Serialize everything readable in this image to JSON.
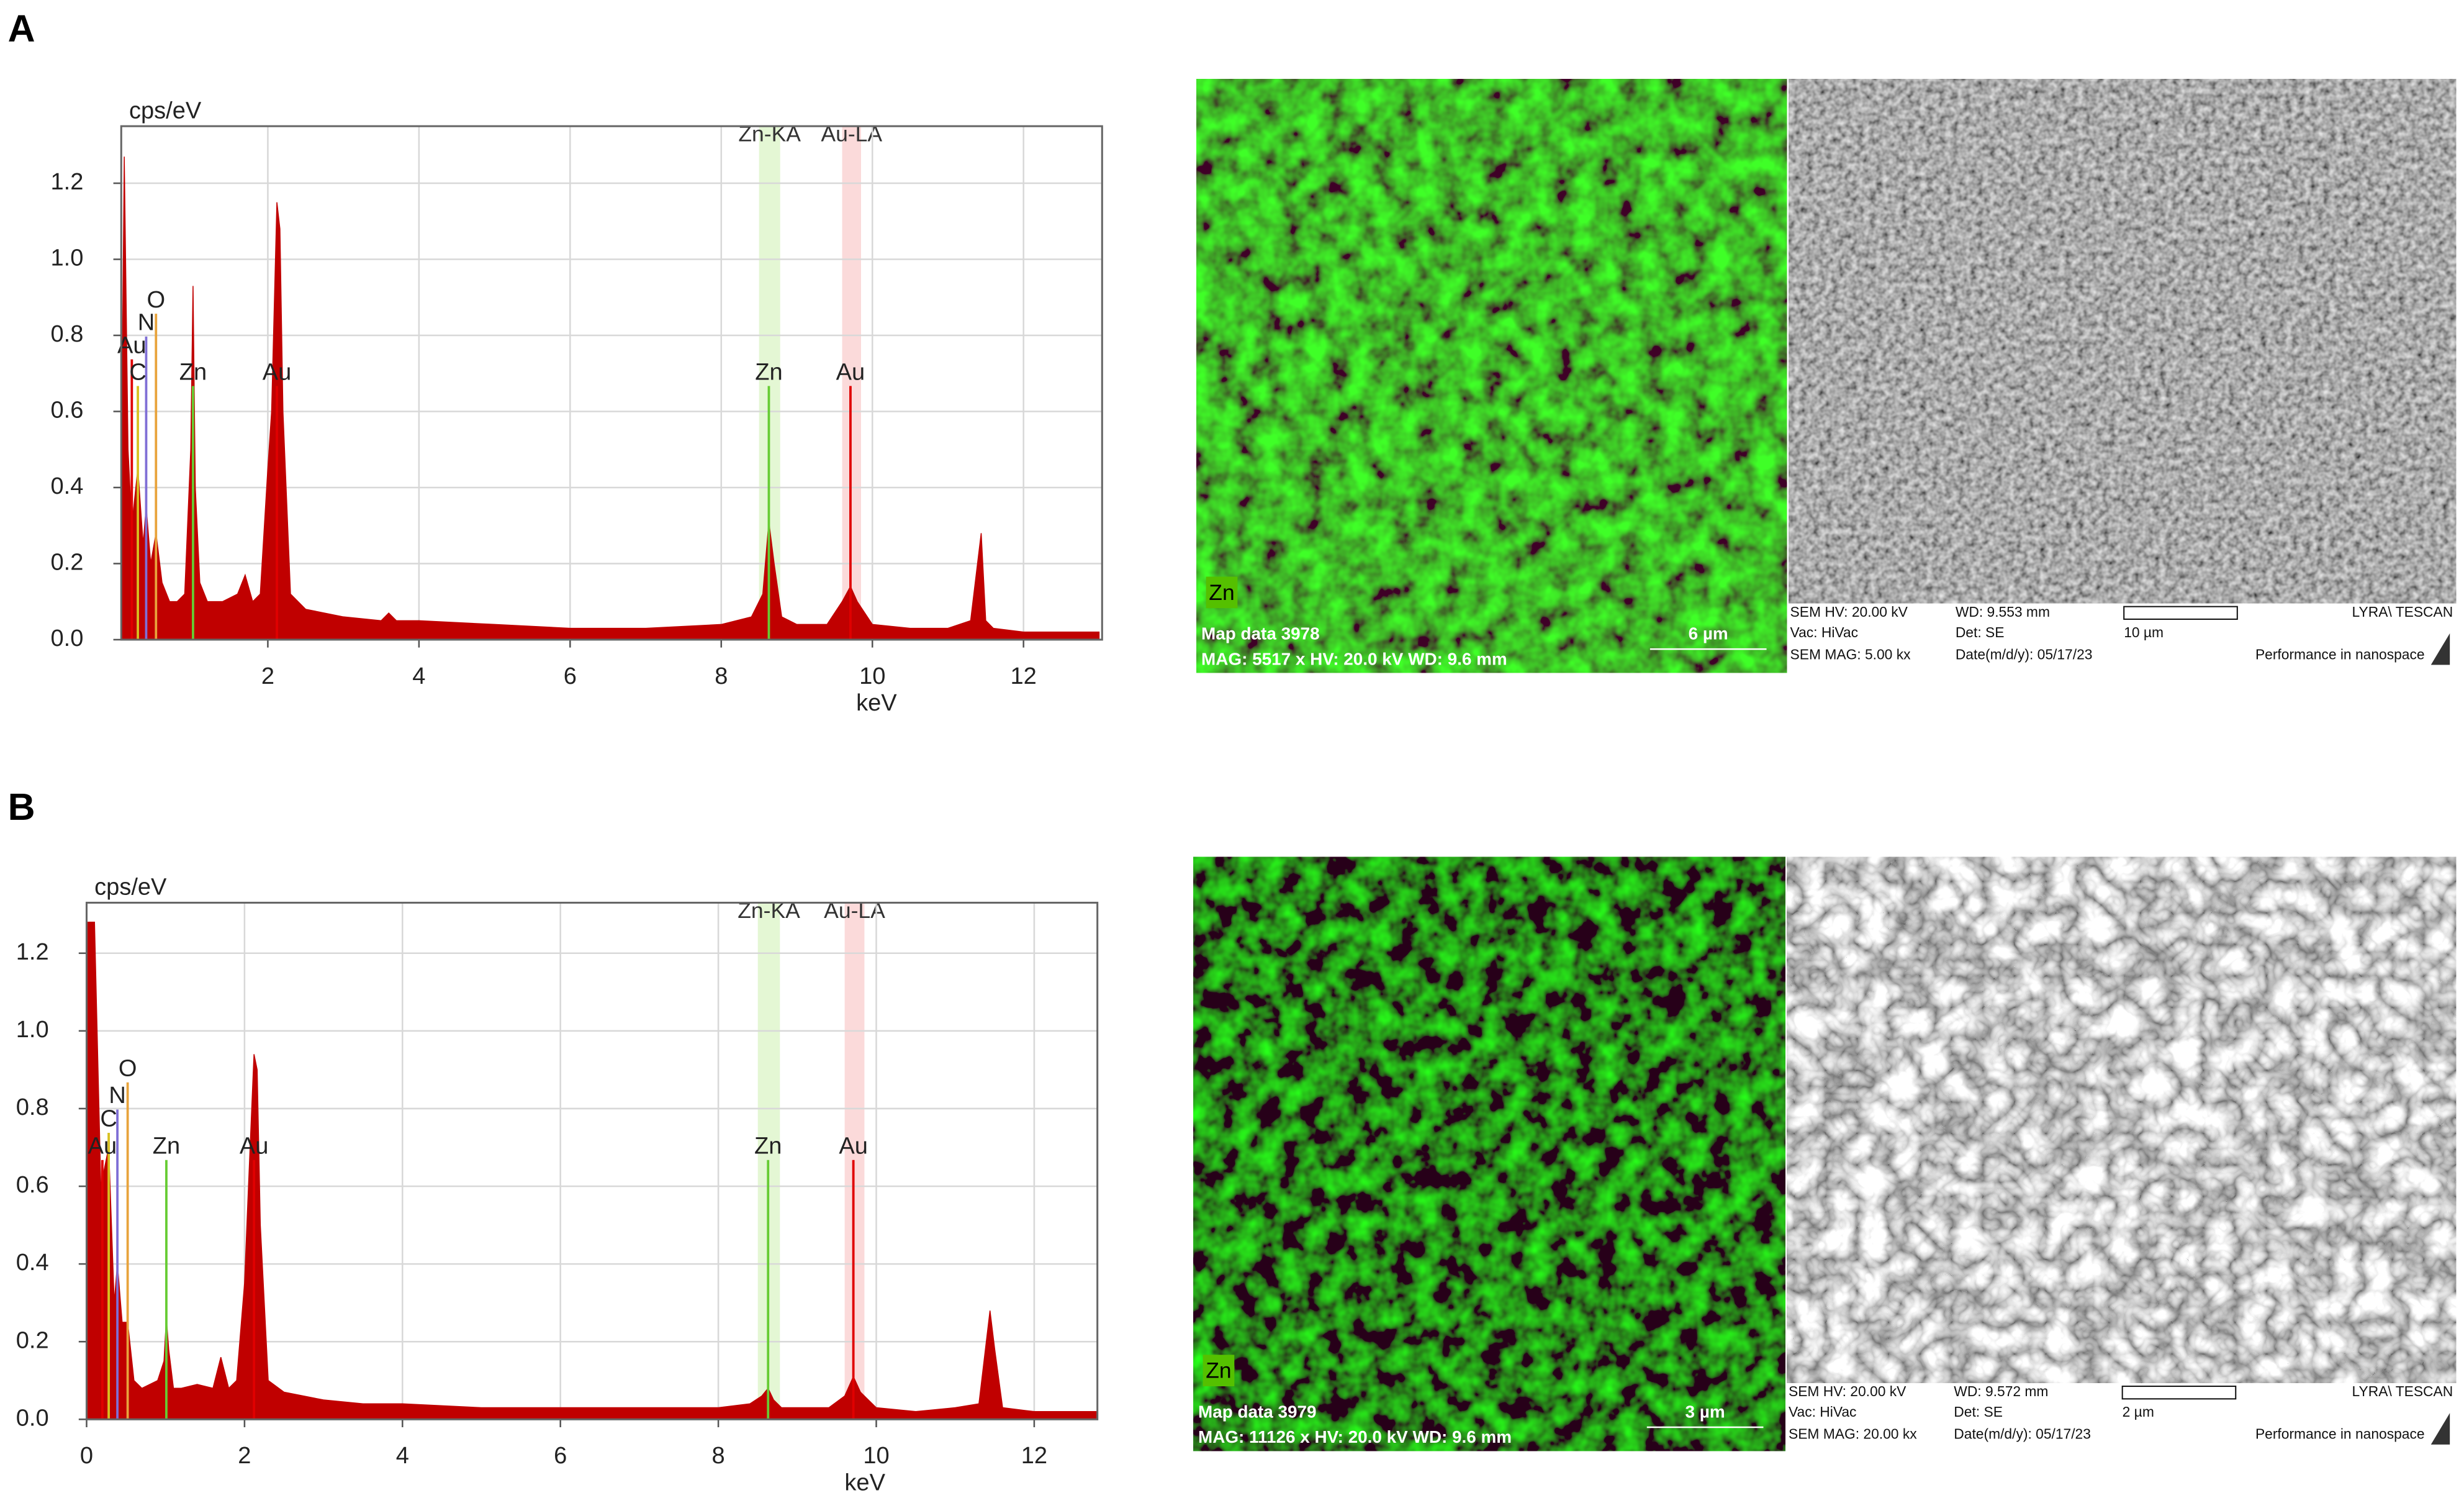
{
  "chart_data": [
    {
      "type": "area",
      "panel": "A",
      "y_label": "cps/eV",
      "x_label": "keV",
      "xlim": [
        0.06,
        13.04
      ],
      "ylim": [
        0,
        1.35
      ],
      "grid": true,
      "xticks": [
        2,
        4,
        6,
        8,
        10,
        12
      ],
      "yticks": [
        {
          "value": 0,
          "label": "0.0"
        },
        {
          "value": 0.2,
          "label": "0.2"
        },
        {
          "value": 0.4,
          "label": "0.4"
        },
        {
          "value": 0.6,
          "label": "0.6"
        },
        {
          "value": 0.8,
          "label": "0.8"
        },
        {
          "value": 1.0,
          "label": "1.0"
        },
        {
          "value": 1.2,
          "label": "1.2"
        }
      ],
      "x": [
        0.06,
        0.1,
        0.15,
        0.2,
        0.28,
        0.35,
        0.39,
        0.45,
        0.52,
        0.6,
        0.7,
        0.8,
        0.9,
        0.98,
        1.01,
        1.04,
        1.1,
        1.2,
        1.4,
        1.6,
        1.7,
        1.8,
        1.9,
        2.0,
        2.05,
        2.12,
        2.16,
        2.2,
        2.3,
        2.5,
        3.0,
        3.5,
        3.6,
        3.7,
        4,
        5,
        6,
        7,
        8,
        8.4,
        8.55,
        8.63,
        8.7,
        8.8,
        9.0,
        9.4,
        9.6,
        9.71,
        9.8,
        10,
        10.5,
        11,
        11.3,
        11.44,
        11.5,
        11.6,
        12,
        13
      ],
      "series": [
        {
          "color": "#c00000",
          "values": [
            0.4,
            1.27,
            0.5,
            0.3,
            0.45,
            0.25,
            0.35,
            0.2,
            0.28,
            0.15,
            0.1,
            0.1,
            0.12,
            0.5,
            0.93,
            0.4,
            0.15,
            0.1,
            0.1,
            0.12,
            0.17,
            0.1,
            0.12,
            0.45,
            0.6,
            1.15,
            1.08,
            0.6,
            0.12,
            0.08,
            0.06,
            0.05,
            0.07,
            0.05,
            0.05,
            0.04,
            0.03,
            0.03,
            0.04,
            0.06,
            0.12,
            0.31,
            0.2,
            0.06,
            0.04,
            0.04,
            0.1,
            0.14,
            0.1,
            0.04,
            0.03,
            0.03,
            0.05,
            0.28,
            0.05,
            0.03,
            0.02,
            0.02
          ]
        }
      ],
      "bands": [
        {
          "label": "Zn-KA",
          "x": [
            8.5,
            8.78
          ],
          "color": "#e4f7d4"
        },
        {
          "label": "Au-LA",
          "x": [
            9.6,
            9.85
          ],
          "color": "#fbdada"
        }
      ],
      "annotations": [
        {
          "text": "O",
          "x": 0.52,
          "y": 0.89,
          "color": "#e8a33c"
        },
        {
          "text": "N",
          "x": 0.39,
          "y": 0.83,
          "color": "#7f6fd6"
        },
        {
          "text": "Au",
          "x": 0.2,
          "y": 0.77,
          "color": "#e00000"
        },
        {
          "text": "C",
          "x": 0.28,
          "y": 0.7,
          "color": "#d8c020"
        },
        {
          "text": "Zn",
          "x": 1.01,
          "y": 0.7,
          "color": "#66cc33"
        },
        {
          "text": "Au",
          "x": 2.12,
          "y": 0.7,
          "color": "#e00000"
        },
        {
          "text": "Zn",
          "x": 8.63,
          "y": 0.7,
          "color": "#66cc33"
        },
        {
          "text": "Au",
          "x": 9.71,
          "y": 0.7,
          "color": "#e00000"
        }
      ]
    },
    {
      "type": "area",
      "panel": "B",
      "y_label": "cps/eV",
      "x_label": "keV",
      "xlim": [
        0,
        12.8
      ],
      "ylim": [
        0,
        1.33
      ],
      "grid": true,
      "xticks": [
        0,
        2,
        4,
        6,
        8,
        10,
        12
      ],
      "yticks": [
        {
          "value": 0,
          "label": "0.0"
        },
        {
          "value": 0.2,
          "label": "0.2"
        },
        {
          "value": 0.4,
          "label": "0.4"
        },
        {
          "value": 0.6,
          "label": "0.6"
        },
        {
          "value": 0.8,
          "label": "0.8"
        },
        {
          "value": 1.0,
          "label": "1.0"
        },
        {
          "value": 1.2,
          "label": "1.2"
        }
      ],
      "x": [
        0,
        0.05,
        0.1,
        0.18,
        0.28,
        0.35,
        0.39,
        0.45,
        0.52,
        0.6,
        0.7,
        0.8,
        0.9,
        0.98,
        1.01,
        1.04,
        1.1,
        1.2,
        1.4,
        1.6,
        1.7,
        1.8,
        1.9,
        2.0,
        2.05,
        2.12,
        2.16,
        2.2,
        2.3,
        2.5,
        3,
        3.5,
        4,
        5,
        6,
        7,
        8,
        8.4,
        8.55,
        8.63,
        8.7,
        8.8,
        9.0,
        9.4,
        9.6,
        9.71,
        9.8,
        10,
        10.5,
        11,
        11.3,
        11.44,
        11.5,
        11.6,
        12,
        12.8
      ],
      "series": [
        {
          "color": "#c00000",
          "values": [
            1.28,
            1.28,
            1.28,
            0.6,
            0.7,
            0.3,
            0.4,
            0.25,
            0.25,
            0.1,
            0.08,
            0.09,
            0.1,
            0.15,
            0.26,
            0.18,
            0.08,
            0.08,
            0.09,
            0.08,
            0.16,
            0.08,
            0.1,
            0.35,
            0.6,
            0.94,
            0.9,
            0.5,
            0.1,
            0.07,
            0.05,
            0.04,
            0.04,
            0.03,
            0.03,
            0.03,
            0.03,
            0.04,
            0.06,
            0.08,
            0.05,
            0.03,
            0.03,
            0.03,
            0.06,
            0.11,
            0.07,
            0.03,
            0.02,
            0.03,
            0.04,
            0.28,
            0.18,
            0.03,
            0.02,
            0.02
          ]
        }
      ],
      "bands": [
        {
          "label": "Zn-KA",
          "x": [
            8.5,
            8.78
          ],
          "color": "#e4f7d4"
        },
        {
          "label": "Au-LA",
          "x": [
            9.6,
            9.85
          ],
          "color": "#fbdada"
        }
      ],
      "annotations": [
        {
          "text": "O",
          "x": 0.52,
          "y": 0.9,
          "color": "#e8a33c"
        },
        {
          "text": "N",
          "x": 0.39,
          "y": 0.83,
          "color": "#7f6fd6"
        },
        {
          "text": "C",
          "x": 0.28,
          "y": 0.77,
          "color": "#d8c020"
        },
        {
          "text": "Au",
          "x": 0.2,
          "y": 0.7,
          "color": "#e00000"
        },
        {
          "text": "Zn",
          "x": 1.01,
          "y": 0.7,
          "color": "#66cc33"
        },
        {
          "text": "Au",
          "x": 2.12,
          "y": 0.7,
          "color": "#e00000"
        },
        {
          "text": "Zn",
          "x": 8.63,
          "y": 0.7,
          "color": "#66cc33"
        },
        {
          "text": "Au",
          "x": 9.71,
          "y": 0.7,
          "color": "#e00000"
        }
      ]
    }
  ],
  "panels": [
    {
      "map": {
        "element": "Zn",
        "title": "Map data 3978",
        "info": "MAG: 5517 x HV: 20.0 kV WD: 9.6 mm",
        "scale": "6 µm"
      },
      "sem": {
        "hv": "SEM HV: 20.00 kV",
        "wd": "WD: 9.553 mm",
        "brand": "LYRA\\ TESCAN",
        "vac": "Vac: HiVac",
        "det": "Det: SE",
        "scale": "10 µm",
        "mag": "SEM MAG: 5.00 kx",
        "date": "Date(m/d/y): 05/17/23",
        "slogan": "Performance in nanospace"
      }
    },
    {
      "map": {
        "element": "Zn",
        "title": "Map data 3979",
        "info": "MAG: 11126 x HV: 20.0 kV WD: 9.6 mm",
        "scale": "3 µm"
      },
      "sem": {
        "hv": "SEM HV: 20.00 kV",
        "wd": "WD: 9.572 mm",
        "brand": "LYRA\\ TESCAN",
        "vac": "Vac: HiVac",
        "det": "Det: SE",
        "scale": "2 µm",
        "mag": "SEM MAG: 20.00 kx",
        "date": "Date(m/d/y): 05/17/23",
        "slogan": "Performance in nanospace"
      }
    }
  ]
}
